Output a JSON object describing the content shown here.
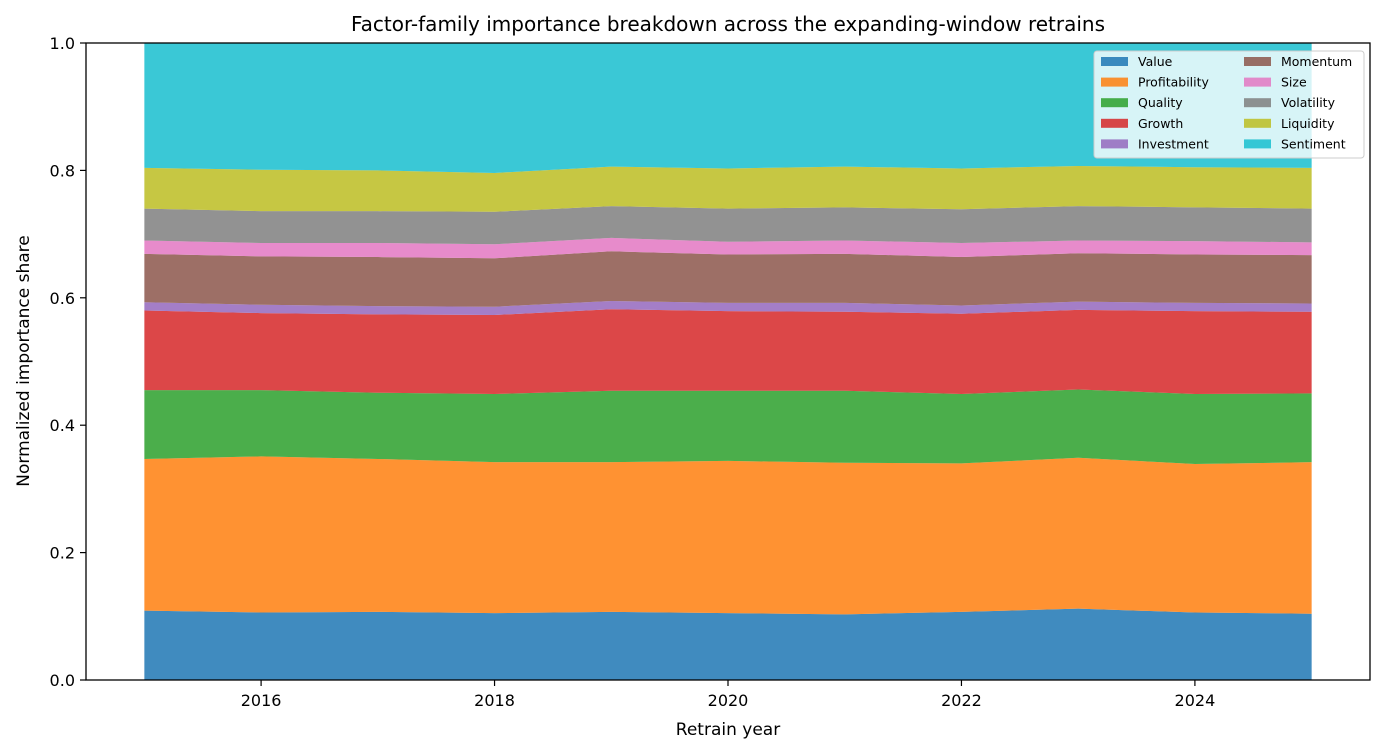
{
  "chart_data": {
    "type": "area",
    "stacked": true,
    "normalized": true,
    "title": "Factor-family importance breakdown across the expanding-window retrains",
    "xlabel": "Retrain year",
    "ylabel": "Normalized importance share",
    "xlim": [
      2014.5,
      2025.5
    ],
    "ylim": [
      0,
      1
    ],
    "x_ticks": [
      2016,
      2018,
      2020,
      2022,
      2024
    ],
    "y_ticks": [
      0.0,
      0.2,
      0.4,
      0.6,
      0.8,
      1.0
    ],
    "y_tick_labels": [
      "0.0",
      "0.2",
      "0.4",
      "0.6",
      "0.8",
      "1.0"
    ],
    "grid": false,
    "legend_position": "top-right",
    "legend_columns": 2,
    "x": [
      2015,
      2016,
      2017,
      2018,
      2019,
      2020,
      2021,
      2022,
      2023,
      2024,
      2025
    ],
    "series": [
      {
        "name": "Value",
        "color": "#1f77b4",
        "values": [
          0.109,
          0.106,
          0.107,
          0.105,
          0.107,
          0.105,
          0.103,
          0.107,
          0.112,
          0.106,
          0.104
        ]
      },
      {
        "name": "Profitability",
        "color": "#ff7f0e",
        "values": [
          0.238,
          0.245,
          0.24,
          0.237,
          0.235,
          0.239,
          0.238,
          0.233,
          0.237,
          0.233,
          0.238
        ]
      },
      {
        "name": "Quality",
        "color": "#2ca02c",
        "values": [
          0.108,
          0.104,
          0.104,
          0.107,
          0.112,
          0.11,
          0.113,
          0.109,
          0.107,
          0.11,
          0.108
        ]
      },
      {
        "name": "Growth",
        "color": "#d62728",
        "values": [
          0.125,
          0.121,
          0.123,
          0.124,
          0.128,
          0.125,
          0.124,
          0.126,
          0.125,
          0.13,
          0.128
        ]
      },
      {
        "name": "Investment",
        "color": "#9467bd",
        "values": [
          0.013,
          0.013,
          0.013,
          0.013,
          0.013,
          0.013,
          0.014,
          0.013,
          0.013,
          0.013,
          0.013
        ]
      },
      {
        "name": "Momentum",
        "color": "#8c564b",
        "values": [
          0.076,
          0.076,
          0.077,
          0.076,
          0.078,
          0.076,
          0.077,
          0.076,
          0.076,
          0.076,
          0.076
        ]
      },
      {
        "name": "Size",
        "color": "#e377c2",
        "values": [
          0.021,
          0.021,
          0.022,
          0.022,
          0.021,
          0.02,
          0.021,
          0.022,
          0.02,
          0.021,
          0.02
        ]
      },
      {
        "name": "Volatility",
        "color": "#7f7f7f",
        "values": [
          0.05,
          0.05,
          0.05,
          0.051,
          0.05,
          0.052,
          0.052,
          0.053,
          0.054,
          0.053,
          0.053
        ]
      },
      {
        "name": "Liquidity",
        "color": "#bcbd22",
        "values": [
          0.064,
          0.065,
          0.064,
          0.061,
          0.062,
          0.063,
          0.064,
          0.064,
          0.063,
          0.063,
          0.064
        ]
      },
      {
        "name": "Sentiment",
        "color": "#17becf",
        "values": [
          0.196,
          0.199,
          0.2,
          0.204,
          0.194,
          0.197,
          0.194,
          0.197,
          0.193,
          0.195,
          0.196
        ]
      }
    ]
  }
}
